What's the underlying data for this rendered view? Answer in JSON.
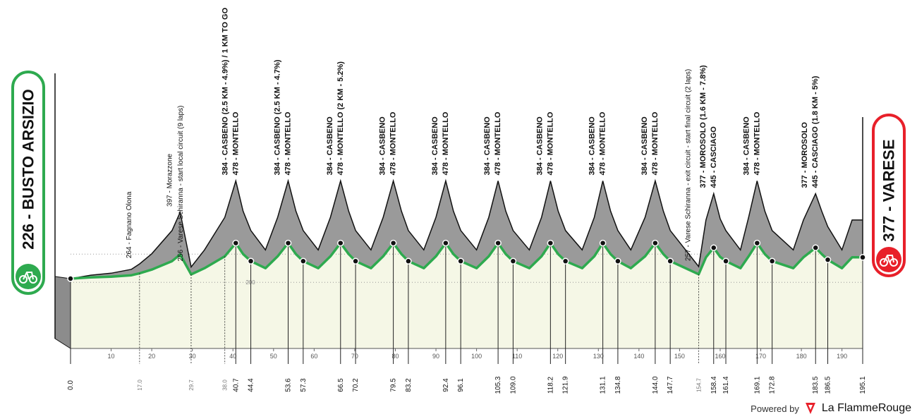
{
  "start": {
    "label": "226 - BUSTO ARSIZIO"
  },
  "finish": {
    "label": "377 - VARESE"
  },
  "footer": {
    "powered": "Powered by",
    "brand": "La FlammeRouge"
  },
  "colors": {
    "fill": "#f5f7e6",
    "accent": "#2eaa4f",
    "mountain": "#9a9a9a",
    "finish": "#e8202a"
  },
  "chart_data": {
    "type": "area",
    "x_ticks": [
      10,
      20,
      30,
      40,
      50,
      60,
      70,
      80,
      90,
      100,
      110,
      120,
      130,
      140,
      150,
      160,
      170,
      180,
      190
    ],
    "y_ticks": [
      200,
      400
    ],
    "xlim": [
      0,
      195.1
    ],
    "profile": [
      [
        0,
        226
      ],
      [
        5,
        235
      ],
      [
        10,
        240
      ],
      [
        15,
        250
      ],
      [
        17,
        264
      ],
      [
        20,
        290
      ],
      [
        25,
        350
      ],
      [
        27,
        397
      ],
      [
        29.7,
        256
      ],
      [
        33,
        300
      ],
      [
        38.0,
        384
      ],
      [
        40.7,
        478
      ],
      [
        42.5,
        400
      ],
      [
        44.4,
        350
      ],
      [
        48,
        300
      ],
      [
        51,
        384
      ],
      [
        53.6,
        478
      ],
      [
        55.5,
        400
      ],
      [
        57.3,
        350
      ],
      [
        61,
        300
      ],
      [
        64,
        384
      ],
      [
        66.5,
        478
      ],
      [
        68.5,
        400
      ],
      [
        70.2,
        350
      ],
      [
        74,
        300
      ],
      [
        77,
        384
      ],
      [
        79.5,
        478
      ],
      [
        81.5,
        400
      ],
      [
        83.2,
        350
      ],
      [
        87,
        300
      ],
      [
        90,
        384
      ],
      [
        92.4,
        478
      ],
      [
        94.3,
        400
      ],
      [
        96.1,
        350
      ],
      [
        100,
        300
      ],
      [
        103,
        384
      ],
      [
        105.3,
        478
      ],
      [
        107.2,
        400
      ],
      [
        109.0,
        350
      ],
      [
        113,
        300
      ],
      [
        116,
        384
      ],
      [
        118.2,
        478
      ],
      [
        120.1,
        400
      ],
      [
        121.9,
        350
      ],
      [
        126,
        300
      ],
      [
        129,
        384
      ],
      [
        131.1,
        478
      ],
      [
        133,
        400
      ],
      [
        134.8,
        350
      ],
      [
        138,
        300
      ],
      [
        141.5,
        384
      ],
      [
        144.0,
        478
      ],
      [
        146,
        400
      ],
      [
        147.7,
        350
      ],
      [
        154.7,
        257
      ],
      [
        156.5,
        377
      ],
      [
        158.4,
        445
      ],
      [
        160,
        380
      ],
      [
        161.4,
        350
      ],
      [
        165,
        300
      ],
      [
        167,
        384
      ],
      [
        169.1,
        478
      ],
      [
        171,
        400
      ],
      [
        172.8,
        350
      ],
      [
        178,
        300
      ],
      [
        180.5,
        377
      ],
      [
        183.5,
        445
      ],
      [
        185,
        400
      ],
      [
        186.5,
        360
      ],
      [
        190,
        300
      ],
      [
        192.5,
        377
      ],
      [
        195.1,
        377
      ]
    ],
    "km_markers": [
      {
        "km": 0.0,
        "label": "0.0",
        "long": true,
        "dot": true
      },
      {
        "km": 17.0,
        "label": "17.0",
        "long": false,
        "dot": false
      },
      {
        "km": 29.7,
        "label": "29.7",
        "long": false,
        "dot": false
      },
      {
        "km": 38.0,
        "label": "38.0",
        "long": false,
        "dot": false
      },
      {
        "km": 40.7,
        "label": "40.7",
        "long": true,
        "dot": true
      },
      {
        "km": 44.4,
        "label": "44.4",
        "long": true,
        "dot": true
      },
      {
        "km": 53.6,
        "label": "53.6",
        "long": true,
        "dot": true
      },
      {
        "km": 57.3,
        "label": "57.3",
        "long": true,
        "dot": true
      },
      {
        "km": 66.5,
        "label": "66.5",
        "long": true,
        "dot": true
      },
      {
        "km": 70.2,
        "label": "70.2",
        "long": true,
        "dot": true
      },
      {
        "km": 79.5,
        "label": "79.5",
        "long": true,
        "dot": true
      },
      {
        "km": 83.2,
        "label": "83.2",
        "long": true,
        "dot": true
      },
      {
        "km": 92.4,
        "label": "92.4",
        "long": true,
        "dot": true
      },
      {
        "km": 96.1,
        "label": "96.1",
        "long": true,
        "dot": true
      },
      {
        "km": 105.3,
        "label": "105.3",
        "long": true,
        "dot": true
      },
      {
        "km": 109.0,
        "label": "109.0",
        "long": true,
        "dot": true
      },
      {
        "km": 118.2,
        "label": "118.2",
        "long": true,
        "dot": true
      },
      {
        "km": 121.9,
        "label": "121.9",
        "long": true,
        "dot": true
      },
      {
        "km": 131.1,
        "label": "131.1",
        "long": true,
        "dot": true
      },
      {
        "km": 134.8,
        "label": "134.8",
        "long": true,
        "dot": true
      },
      {
        "km": 144.0,
        "label": "144.0",
        "long": true,
        "dot": true
      },
      {
        "km": 147.7,
        "label": "147.7",
        "long": true,
        "dot": true
      },
      {
        "km": 154.7,
        "label": "154.7",
        "long": false,
        "dot": false
      },
      {
        "km": 158.4,
        "label": "158.4",
        "long": true,
        "dot": true
      },
      {
        "km": 161.4,
        "label": "161.4",
        "long": true,
        "dot": true
      },
      {
        "km": 169.1,
        "label": "169.1",
        "long": true,
        "dot": true
      },
      {
        "km": 172.8,
        "label": "172.8",
        "long": true,
        "dot": true
      },
      {
        "km": 183.5,
        "label": "183.5",
        "long": true,
        "dot": true
      },
      {
        "km": 186.5,
        "label": "186.5",
        "long": true,
        "dot": true
      },
      {
        "km": 195.1,
        "label": "195.1",
        "long": true,
        "dot": true
      }
    ],
    "annotations": [
      {
        "km": 17.0,
        "lines": [
          "264 - Fagnano Olona"
        ],
        "bold": false
      },
      {
        "km": 27.0,
        "lines": [
          "397 - Morazzone"
        ],
        "bold": false
      },
      {
        "km": 29.7,
        "lines": [
          "256 - Varese Schiranna - start local circuit (9 laps)"
        ],
        "bold": false
      },
      {
        "km": 40.7,
        "lines": [
          "384 - CASBENO (2.5 KM - 4.9%) / 1 KM TO GO",
          "478 - MONTELLO"
        ],
        "bold": true
      },
      {
        "km": 53.6,
        "lines": [
          "384 - CASBENO (2.5 KM - 4.7%)",
          "478 - MONTELLO"
        ],
        "bold": true
      },
      {
        "km": 66.5,
        "lines": [
          "384 - CASBENO",
          "478 - MONTELLO (2 KM - 5.2%)"
        ],
        "bold": true
      },
      {
        "km": 79.5,
        "lines": [
          "384 - CASBENO",
          "478 - MONTELLO"
        ],
        "bold": true
      },
      {
        "km": 92.4,
        "lines": [
          "384 - CASBENO",
          "478 - MONTELLO"
        ],
        "bold": true
      },
      {
        "km": 105.3,
        "lines": [
          "384 - CASBENO",
          "478 - MONTELLO"
        ],
        "bold": true
      },
      {
        "km": 118.2,
        "lines": [
          "384 - CASBENO",
          "478 - MONTELLO"
        ],
        "bold": true
      },
      {
        "km": 131.1,
        "lines": [
          "384 - CASBENO",
          "478 - MONTELLO"
        ],
        "bold": true
      },
      {
        "km": 144.0,
        "lines": [
          "384 - CASBENO",
          "478 - MONTELLO"
        ],
        "bold": true
      },
      {
        "km": 154.7,
        "lines": [
          "257 - Varese Schiranna - exit circuit - start final circuit (2 laps)"
        ],
        "bold": false
      },
      {
        "km": 158.4,
        "lines": [
          "377 - MOROSOLO (1.6 KM - 7.8%)",
          "445 - CASCIAGO"
        ],
        "bold": true
      },
      {
        "km": 169.1,
        "lines": [
          "384 - CASBENO",
          "478 - MONTELLO"
        ],
        "bold": true
      },
      {
        "km": 183.5,
        "lines": [
          "377 - MOROSOLO",
          "445 - CASCIAGO (1.8 KM - 5%)"
        ],
        "bold": true
      }
    ]
  }
}
